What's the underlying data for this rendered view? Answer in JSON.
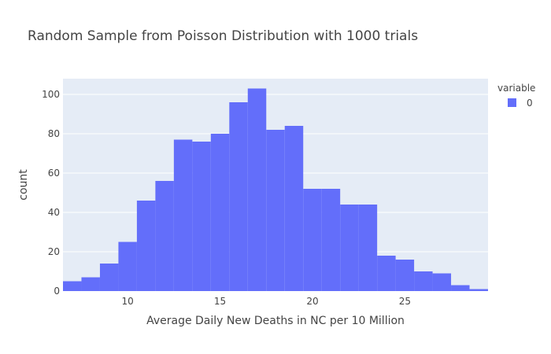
{
  "chart_data": {
    "type": "bar",
    "title": "Random Sample from Poisson Distribution with 1000 trials",
    "xlabel": "Average Daily New Deaths in NC per 10 Million",
    "ylabel": "count",
    "legend_title": "variable",
    "legend_placement": "top-right",
    "grid": true,
    "bin_width": 1,
    "xlim": [
      6.5,
      29.5
    ],
    "ylim": [
      0,
      108
    ],
    "x_ticks": [
      10,
      15,
      20,
      25
    ],
    "y_ticks": [
      0,
      20,
      40,
      60,
      80,
      100
    ],
    "series": [
      {
        "name": "0",
        "color": "#636efa",
        "bin_starts": [
          6.5,
          7.5,
          8.5,
          9.5,
          10.5,
          11.5,
          12.5,
          13.5,
          14.5,
          15.5,
          16.5,
          17.5,
          18.5,
          19.5,
          20.5,
          21.5,
          22.5,
          23.5,
          24.5,
          25.5,
          26.5,
          27.5,
          28.5
        ],
        "values": [
          5,
          7,
          14,
          25,
          46,
          56,
          77,
          76,
          80,
          96,
          103,
          82,
          84,
          52,
          52,
          44,
          44,
          18,
          16,
          10,
          9,
          3,
          1
        ]
      }
    ]
  }
}
